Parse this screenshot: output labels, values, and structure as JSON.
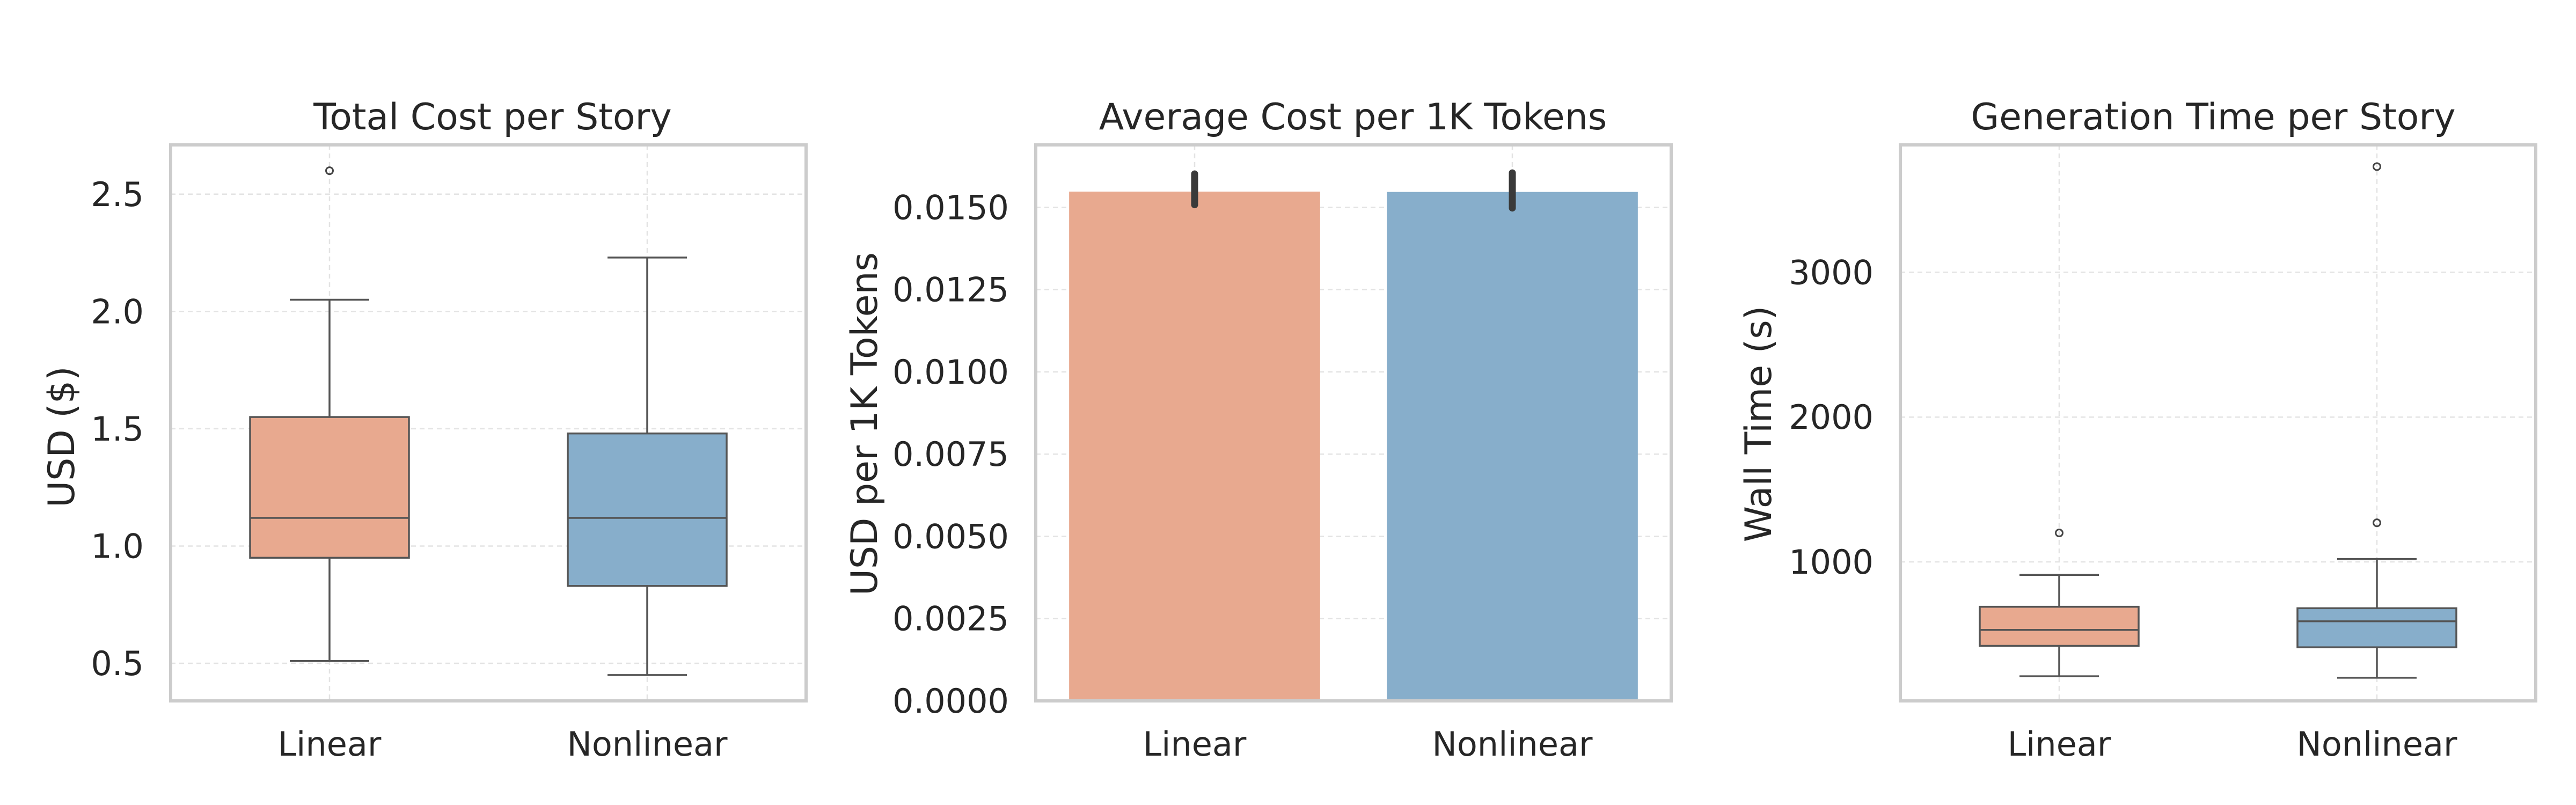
{
  "chart_data": [
    {
      "type": "box",
      "title": "Total Cost per Story",
      "xlabel": "",
      "ylabel": "USD ($)",
      "categories": [
        "Linear",
        "Nonlinear"
      ],
      "ylim": [
        0.34,
        2.71
      ],
      "yticks": [
        0.5,
        1.0,
        1.5,
        2.0,
        2.5
      ],
      "ytick_labels": [
        "0.5",
        "1.0",
        "1.5",
        "2.0",
        "2.5"
      ],
      "grid": true,
      "boxes": [
        {
          "category": "Linear",
          "min": 0.51,
          "q1": 0.95,
          "median": 1.12,
          "q3": 1.55,
          "max": 2.05,
          "outliers": [
            2.6
          ],
          "color": "#e8a98f"
        },
        {
          "category": "Nonlinear",
          "min": 0.45,
          "q1": 0.83,
          "median": 1.12,
          "q3": 1.48,
          "max": 2.23,
          "outliers": [],
          "color": "#87aecb"
        }
      ]
    },
    {
      "type": "bar",
      "title": "Average Cost per 1K Tokens",
      "xlabel": "",
      "ylabel": "USD per 1K Tokens",
      "categories": [
        "Linear",
        "Nonlinear"
      ],
      "values": [
        0.01548,
        0.01547
      ],
      "error_bars": [
        [
          0.01508,
          0.01602
        ],
        [
          0.01498,
          0.01605
        ]
      ],
      "ylim": [
        0,
        0.0169
      ],
      "yticks": [
        0,
        0.0025,
        0.005,
        0.0075,
        0.01,
        0.0125,
        0.015
      ],
      "ytick_labels": [
        "0.0000",
        "0.0025",
        "0.0050",
        "0.0075",
        "0.0100",
        "0.0125",
        "0.0150"
      ],
      "colors": [
        "#e8a98f",
        "#87aecb"
      ],
      "grid": true
    },
    {
      "type": "box",
      "title": "Generation Time per Story",
      "xlabel": "",
      "ylabel": "Wall Time (s)",
      "categories": [
        "Linear",
        "Nonlinear"
      ],
      "ylim": [
        40,
        3880
      ],
      "yticks": [
        1000,
        2000,
        3000
      ],
      "ytick_labels": [
        "1000",
        "2000",
        "3000"
      ],
      "grid": true,
      "boxes": [
        {
          "category": "Linear",
          "min": 210,
          "q1": 420,
          "median": 530,
          "q3": 690,
          "max": 910,
          "outliers": [
            1200
          ],
          "color": "#e8a98f"
        },
        {
          "category": "Nonlinear",
          "min": 200,
          "q1": 410,
          "median": 590,
          "q3": 680,
          "max": 1020,
          "outliers": [
            1270,
            3730
          ],
          "color": "#87aecb"
        }
      ]
    }
  ]
}
